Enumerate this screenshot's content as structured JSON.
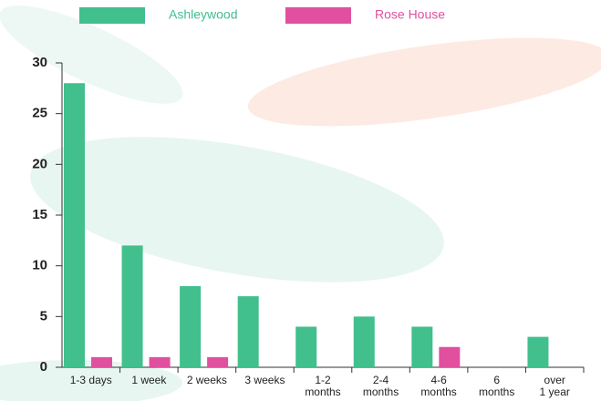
{
  "chart_data": {
    "type": "bar",
    "categories": [
      "1-3 days",
      "1 week",
      "2 weeks",
      "3 weeks",
      "1-2\nmonths",
      "2-4\nmonths",
      "4-6\nmonths",
      "6\nmonths",
      "over\n1 year"
    ],
    "series": [
      {
        "name": "Ashleywood",
        "color": "#41bf8c",
        "values": [
          28,
          12,
          8,
          7,
          4,
          5,
          4,
          0,
          3
        ]
      },
      {
        "name": "Rose House",
        "color": "#e0509f",
        "values": [
          1,
          1,
          1,
          0,
          0,
          0,
          2,
          0,
          0
        ]
      }
    ],
    "ylim": [
      0,
      30
    ],
    "yticks": [
      0,
      5,
      10,
      15,
      20,
      25,
      30
    ]
  }
}
